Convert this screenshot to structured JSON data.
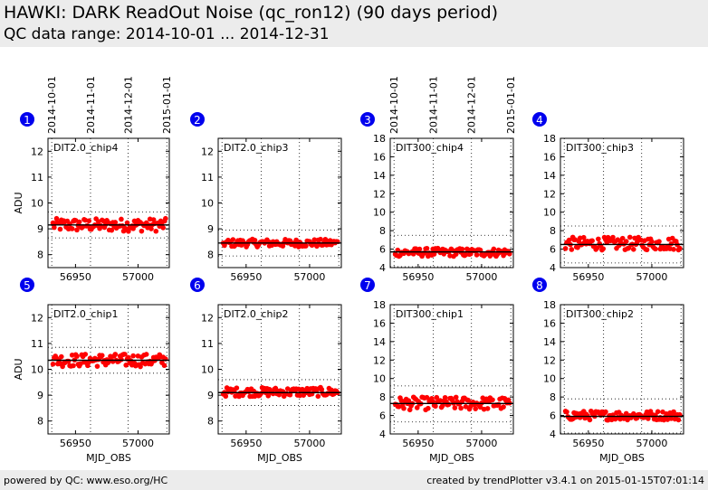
{
  "header": {
    "title": "HAWKI: DARK ReadOut Noise (qc_ron12) (90 days period)",
    "subtitle": "QC data range: 2014-10-01 ... 2014-12-31"
  },
  "footer": {
    "left": "powered by QC: www.eso.org/HC",
    "right": "created by trendPlotter v3.4.1 on 2015-01-15T07:01:14"
  },
  "top_date_labels": [
    "2014-10-01",
    "2014-11-01",
    "2014-12-01",
    "2015-01-01"
  ],
  "chart_data": [
    {
      "type": "scatter",
      "index": "1",
      "label": "DIT2.0_chip4",
      "ylabel": "ADU",
      "xlabel": "",
      "xlim": [
        56928,
        57025
      ],
      "ylim": [
        7.5,
        12.5
      ],
      "yticks": [
        8,
        9,
        10,
        11,
        12
      ],
      "xticks": [
        56950,
        57000
      ],
      "datelines": [
        56931,
        56962,
        56992,
        57023
      ],
      "median": 9.15,
      "limits": [
        9.65,
        8.65
      ],
      "band": [
        8.9,
        9.4
      ],
      "color": "#ff0000",
      "x_range": [
        56932,
        57022
      ]
    },
    {
      "type": "scatter",
      "index": "2",
      "label": "DIT2.0_chip3",
      "ylabel": "",
      "xlabel": "",
      "xlim": [
        56928,
        57025
      ],
      "ylim": [
        7.5,
        12.5
      ],
      "yticks": [
        8,
        9,
        10,
        11,
        12
      ],
      "xticks": [
        56950,
        57000
      ],
      "datelines": [
        56931,
        56962,
        56992,
        57023
      ],
      "median": 8.45,
      "limits": [
        8.95,
        7.95
      ],
      "band": [
        8.3,
        8.6
      ],
      "color": "#ff0000",
      "x_range": [
        56932,
        57022
      ]
    },
    {
      "type": "scatter",
      "index": "3",
      "label": "DIT300_chip4",
      "ylabel": "",
      "xlabel": "",
      "xlim": [
        56928,
        57025
      ],
      "ylim": [
        4,
        18
      ],
      "yticks": [
        4,
        6,
        8,
        10,
        12,
        14,
        16,
        18
      ],
      "xticks": [
        56950,
        57000
      ],
      "datelines": [
        56931,
        56962,
        56992,
        57023
      ],
      "median": 5.7,
      "limits": [
        7.5,
        4.1
      ],
      "band": [
        5.2,
        6.1
      ],
      "color": "#ff0000",
      "x_range": [
        56932,
        57022
      ]
    },
    {
      "type": "scatter",
      "index": "4",
      "label": "DIT300_chip3",
      "ylabel": "",
      "xlabel": "",
      "xlim": [
        56928,
        57025
      ],
      "ylim": [
        4,
        18
      ],
      "yticks": [
        4,
        6,
        8,
        10,
        12,
        14,
        16,
        18
      ],
      "xticks": [
        56950,
        57000
      ],
      "datelines": [
        56931,
        56962,
        56992,
        57023
      ],
      "median": 6.5,
      "limits": [
        8.5,
        4.5
      ],
      "band": [
        5.9,
        7.3
      ],
      "color": "#ff0000",
      "x_range": [
        56932,
        57022
      ]
    },
    {
      "type": "scatter",
      "index": "5",
      "label": "DIT2.0_chip1",
      "ylabel": "ADU",
      "xlabel": "MJD_OBS",
      "xlim": [
        56928,
        57025
      ],
      "ylim": [
        7.5,
        12.5
      ],
      "yticks": [
        8,
        9,
        10,
        11,
        12
      ],
      "xticks": [
        56950,
        57000
      ],
      "datelines": [
        56931,
        56962,
        56992,
        57023
      ],
      "median": 10.35,
      "limits": [
        10.85,
        9.85
      ],
      "band": [
        10.1,
        10.6
      ],
      "color": "#ff0000",
      "x_range": [
        56932,
        57022
      ]
    },
    {
      "type": "scatter",
      "index": "6",
      "label": "DIT2.0_chip2",
      "ylabel": "",
      "xlabel": "MJD_OBS",
      "xlim": [
        56928,
        57025
      ],
      "ylim": [
        7.5,
        12.5
      ],
      "yticks": [
        8,
        9,
        10,
        11,
        12
      ],
      "xticks": [
        56950,
        57000
      ],
      "datelines": [
        56931,
        56962,
        56992,
        57023
      ],
      "median": 9.1,
      "limits": [
        9.6,
        8.6
      ],
      "band": [
        8.95,
        9.3
      ],
      "color": "#ff0000",
      "x_range": [
        56932,
        57022
      ]
    },
    {
      "type": "scatter",
      "index": "7",
      "label": "DIT300_chip1",
      "ylabel": "",
      "xlabel": "MJD_OBS",
      "xlim": [
        56928,
        57025
      ],
      "ylim": [
        4,
        18
      ],
      "yticks": [
        4,
        6,
        8,
        10,
        12,
        14,
        16,
        18
      ],
      "xticks": [
        56950,
        57000
      ],
      "datelines": [
        56931,
        56962,
        56992,
        57023
      ],
      "median": 7.3,
      "limits": [
        9.2,
        5.3
      ],
      "band": [
        6.6,
        8.0
      ],
      "color": "#ff0000",
      "x_range": [
        56932,
        57022
      ]
    },
    {
      "type": "scatter",
      "index": "8",
      "label": "DIT300_chip2",
      "ylabel": "",
      "xlabel": "MJD_OBS",
      "xlim": [
        56928,
        57025
      ],
      "ylim": [
        4,
        18
      ],
      "yticks": [
        4,
        6,
        8,
        10,
        12,
        14,
        16,
        18
      ],
      "xticks": [
        56950,
        57000
      ],
      "datelines": [
        56931,
        56962,
        56992,
        57023
      ],
      "median": 5.9,
      "limits": [
        7.8,
        4.1
      ],
      "band": [
        5.5,
        6.5
      ],
      "color": "#ff0000",
      "x_range": [
        56932,
        57022
      ]
    }
  ]
}
